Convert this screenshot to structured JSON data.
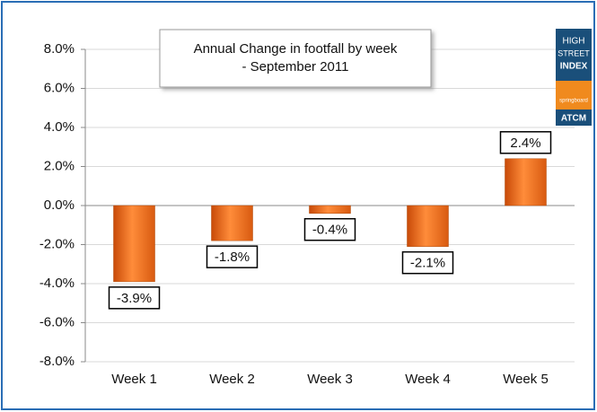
{
  "chart_data": {
    "type": "bar",
    "title": [
      "Annual Change in footfall by week",
      "- September 2011"
    ],
    "categories": [
      "Week 1",
      "Week 2",
      "Week 3",
      "Week 4",
      "Week 5"
    ],
    "values": [
      -3.9,
      -1.8,
      -0.4,
      -2.1,
      2.4
    ],
    "value_labels": [
      "-3.9%",
      "-1.8%",
      "-0.4%",
      "-2.1%",
      "2.4%"
    ],
    "color": "#f07020",
    "ylim": [
      -8,
      8
    ],
    "yticks": [
      {
        "value": -8,
        "label": "-8.0%"
      },
      {
        "value": -6,
        "label": "-6.0%"
      },
      {
        "value": -4,
        "label": "-4.0%"
      },
      {
        "value": -2,
        "label": "-2.0%"
      },
      {
        "value": 0,
        "label": "0.0%"
      },
      {
        "value": 2,
        "label": "2.0%"
      },
      {
        "value": 4,
        "label": "4.0%"
      },
      {
        "value": 6,
        "label": "6.0%"
      },
      {
        "value": 8,
        "label": "8.0%"
      }
    ],
    "grid": true
  },
  "logo": {
    "line1": "HIGH",
    "line2": "STREET",
    "line3": "INDEX",
    "brand": "springboard",
    "partner": "ATCM"
  }
}
